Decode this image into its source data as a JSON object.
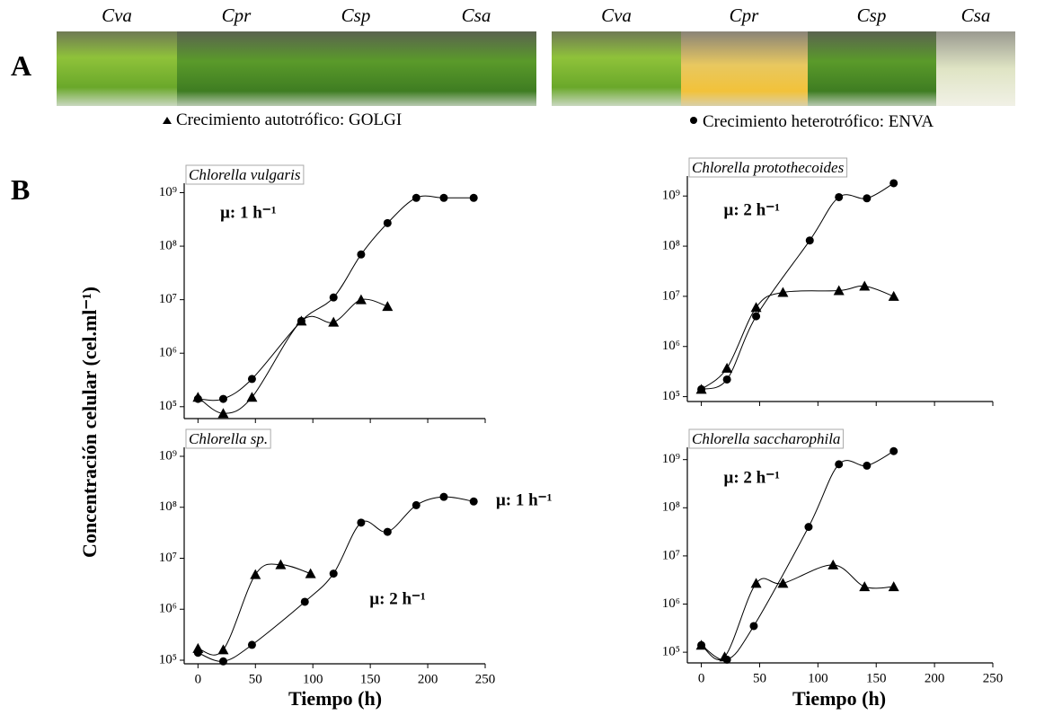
{
  "panel_a": {
    "label": "A",
    "photos_autotrophic": [
      "Cva",
      "Cpr",
      "Csp",
      "Csa"
    ],
    "photos_heterotrophic": [
      "Cva",
      "Cpr",
      "Csp",
      "Csa"
    ],
    "legend": [
      {
        "marker": "triangle",
        "label": "Crecimiento autotrófico: GOLGI"
      },
      {
        "marker": "circle",
        "label": "Crecimiento heterotrófico: ENVA"
      }
    ]
  },
  "panel_b_label": "B",
  "y_axis_label": "Concentración celular (cel.ml⁻¹)",
  "x_axis_label": "Tiempo (h)",
  "chart_data": [
    {
      "type": "scatter",
      "title": "Chlorella vulgaris",
      "log_y": true,
      "xlim": [
        -12,
        250
      ],
      "xticks": [
        0,
        50,
        100,
        150,
        200,
        250
      ],
      "ylim": [
        60000,
        1500000000
      ],
      "yticks": [
        {
          "value": 100000,
          "label": "10⁵"
        },
        {
          "value": 1000000,
          "label": "10⁶"
        },
        {
          "value": 10000000,
          "label": "10⁷"
        },
        {
          "value": 100000000,
          "label": "10⁸"
        },
        {
          "value": 1000000000,
          "label": "10⁹"
        }
      ],
      "annotations": [
        "μ: 1 h⁻¹"
      ],
      "series": [
        {
          "marker": "circle",
          "color": "#000000",
          "x": [
            0,
            22,
            47,
            90,
            118,
            142,
            165,
            190,
            214,
            240
          ],
          "values": [
            140000,
            140000,
            330000,
            4000000,
            11000000,
            70000000,
            270000000,
            800000000,
            800000000,
            800000000
          ]
        },
        {
          "marker": "triangle",
          "color": "#000000",
          "x": [
            0,
            22,
            47,
            90,
            118,
            142,
            165
          ],
          "values": [
            150000,
            75000,
            150000,
            4000000,
            3800000,
            10000000,
            7500000
          ]
        }
      ]
    },
    {
      "type": "scatter",
      "title": "Chlorella protothecoides",
      "log_y": true,
      "xlim": [
        -12,
        250
      ],
      "xticks": [
        0,
        50,
        100,
        150,
        200,
        250
      ],
      "ylim": [
        80000,
        2500000000
      ],
      "yticks": [
        {
          "value": 100000,
          "label": "10⁵"
        },
        {
          "value": 1000000,
          "label": "10⁶"
        },
        {
          "value": 10000000,
          "label": "10⁷"
        },
        {
          "value": 100000000,
          "label": "10⁸"
        },
        {
          "value": 1000000000,
          "label": "10⁹"
        }
      ],
      "annotations": [
        "μ: 2 h⁻¹"
      ],
      "series": [
        {
          "marker": "circle",
          "color": "#000000",
          "x": [
            0,
            22,
            47,
            93,
            118,
            142,
            165
          ],
          "values": [
            140000,
            220000,
            4000000,
            130000000,
            950000000,
            900000000,
            1800000000
          ]
        },
        {
          "marker": "triangle",
          "color": "#000000",
          "x": [
            0,
            22,
            47,
            70,
            118,
            140,
            165
          ],
          "values": [
            140000,
            370000,
            6000000,
            12000000,
            13000000,
            16000000,
            10000000
          ]
        }
      ]
    },
    {
      "type": "scatter",
      "title": "Chlorella sp.",
      "log_y": true,
      "xlim": [
        -12,
        250
      ],
      "xticks": [
        0,
        50,
        100,
        150,
        200,
        250
      ],
      "ylim": [
        85000,
        1500000000
      ],
      "yticks": [
        {
          "value": 100000,
          "label": "10⁵"
        },
        {
          "value": 1000000,
          "label": "10⁶"
        },
        {
          "value": 10000000,
          "label": "10⁷"
        },
        {
          "value": 100000000,
          "label": "10⁸"
        },
        {
          "value": 1000000000,
          "label": "10⁹"
        }
      ],
      "annotations": [
        "μ: 1 h⁻¹",
        "μ: 2 h⁻¹"
      ],
      "series": [
        {
          "marker": "circle",
          "color": "#000000",
          "x": [
            0,
            22,
            47,
            93,
            118,
            142,
            165,
            190,
            214,
            240
          ],
          "values": [
            140000,
            95000,
            200000,
            1400000,
            5000000,
            50000000,
            33000000,
            110000000,
            160000000,
            130000000
          ]
        },
        {
          "marker": "triangle",
          "color": "#000000",
          "x": [
            0,
            22,
            50,
            72,
            98
          ],
          "values": [
            170000,
            160000,
            4800000,
            7500000,
            5000000
          ]
        }
      ]
    },
    {
      "type": "scatter",
      "title": "Chlorella saccharophila",
      "log_y": true,
      "xlim": [
        -12,
        250
      ],
      "xticks": [
        0,
        50,
        100,
        150,
        200,
        250
      ],
      "ylim": [
        60000,
        1800000000
      ],
      "yticks": [
        {
          "value": 100000,
          "label": "10⁵"
        },
        {
          "value": 1000000,
          "label": "10⁶"
        },
        {
          "value": 10000000,
          "label": "10⁷"
        },
        {
          "value": 100000000,
          "label": "10⁸"
        },
        {
          "value": 1000000000,
          "label": "10⁹"
        }
      ],
      "annotations": [
        "μ: 2 h⁻¹"
      ],
      "series": [
        {
          "marker": "circle",
          "color": "#000000",
          "x": [
            0,
            22,
            45,
            92,
            118,
            142,
            165
          ],
          "values": [
            140000,
            70000,
            350000,
            40000000,
            800000000,
            750000000,
            1500000000
          ]
        },
        {
          "marker": "triangle",
          "color": "#000000",
          "x": [
            0,
            20,
            47,
            70,
            113,
            140,
            165
          ],
          "values": [
            140000,
            80000,
            2700000,
            2700000,
            6500000,
            2300000,
            2300000
          ]
        }
      ]
    }
  ]
}
